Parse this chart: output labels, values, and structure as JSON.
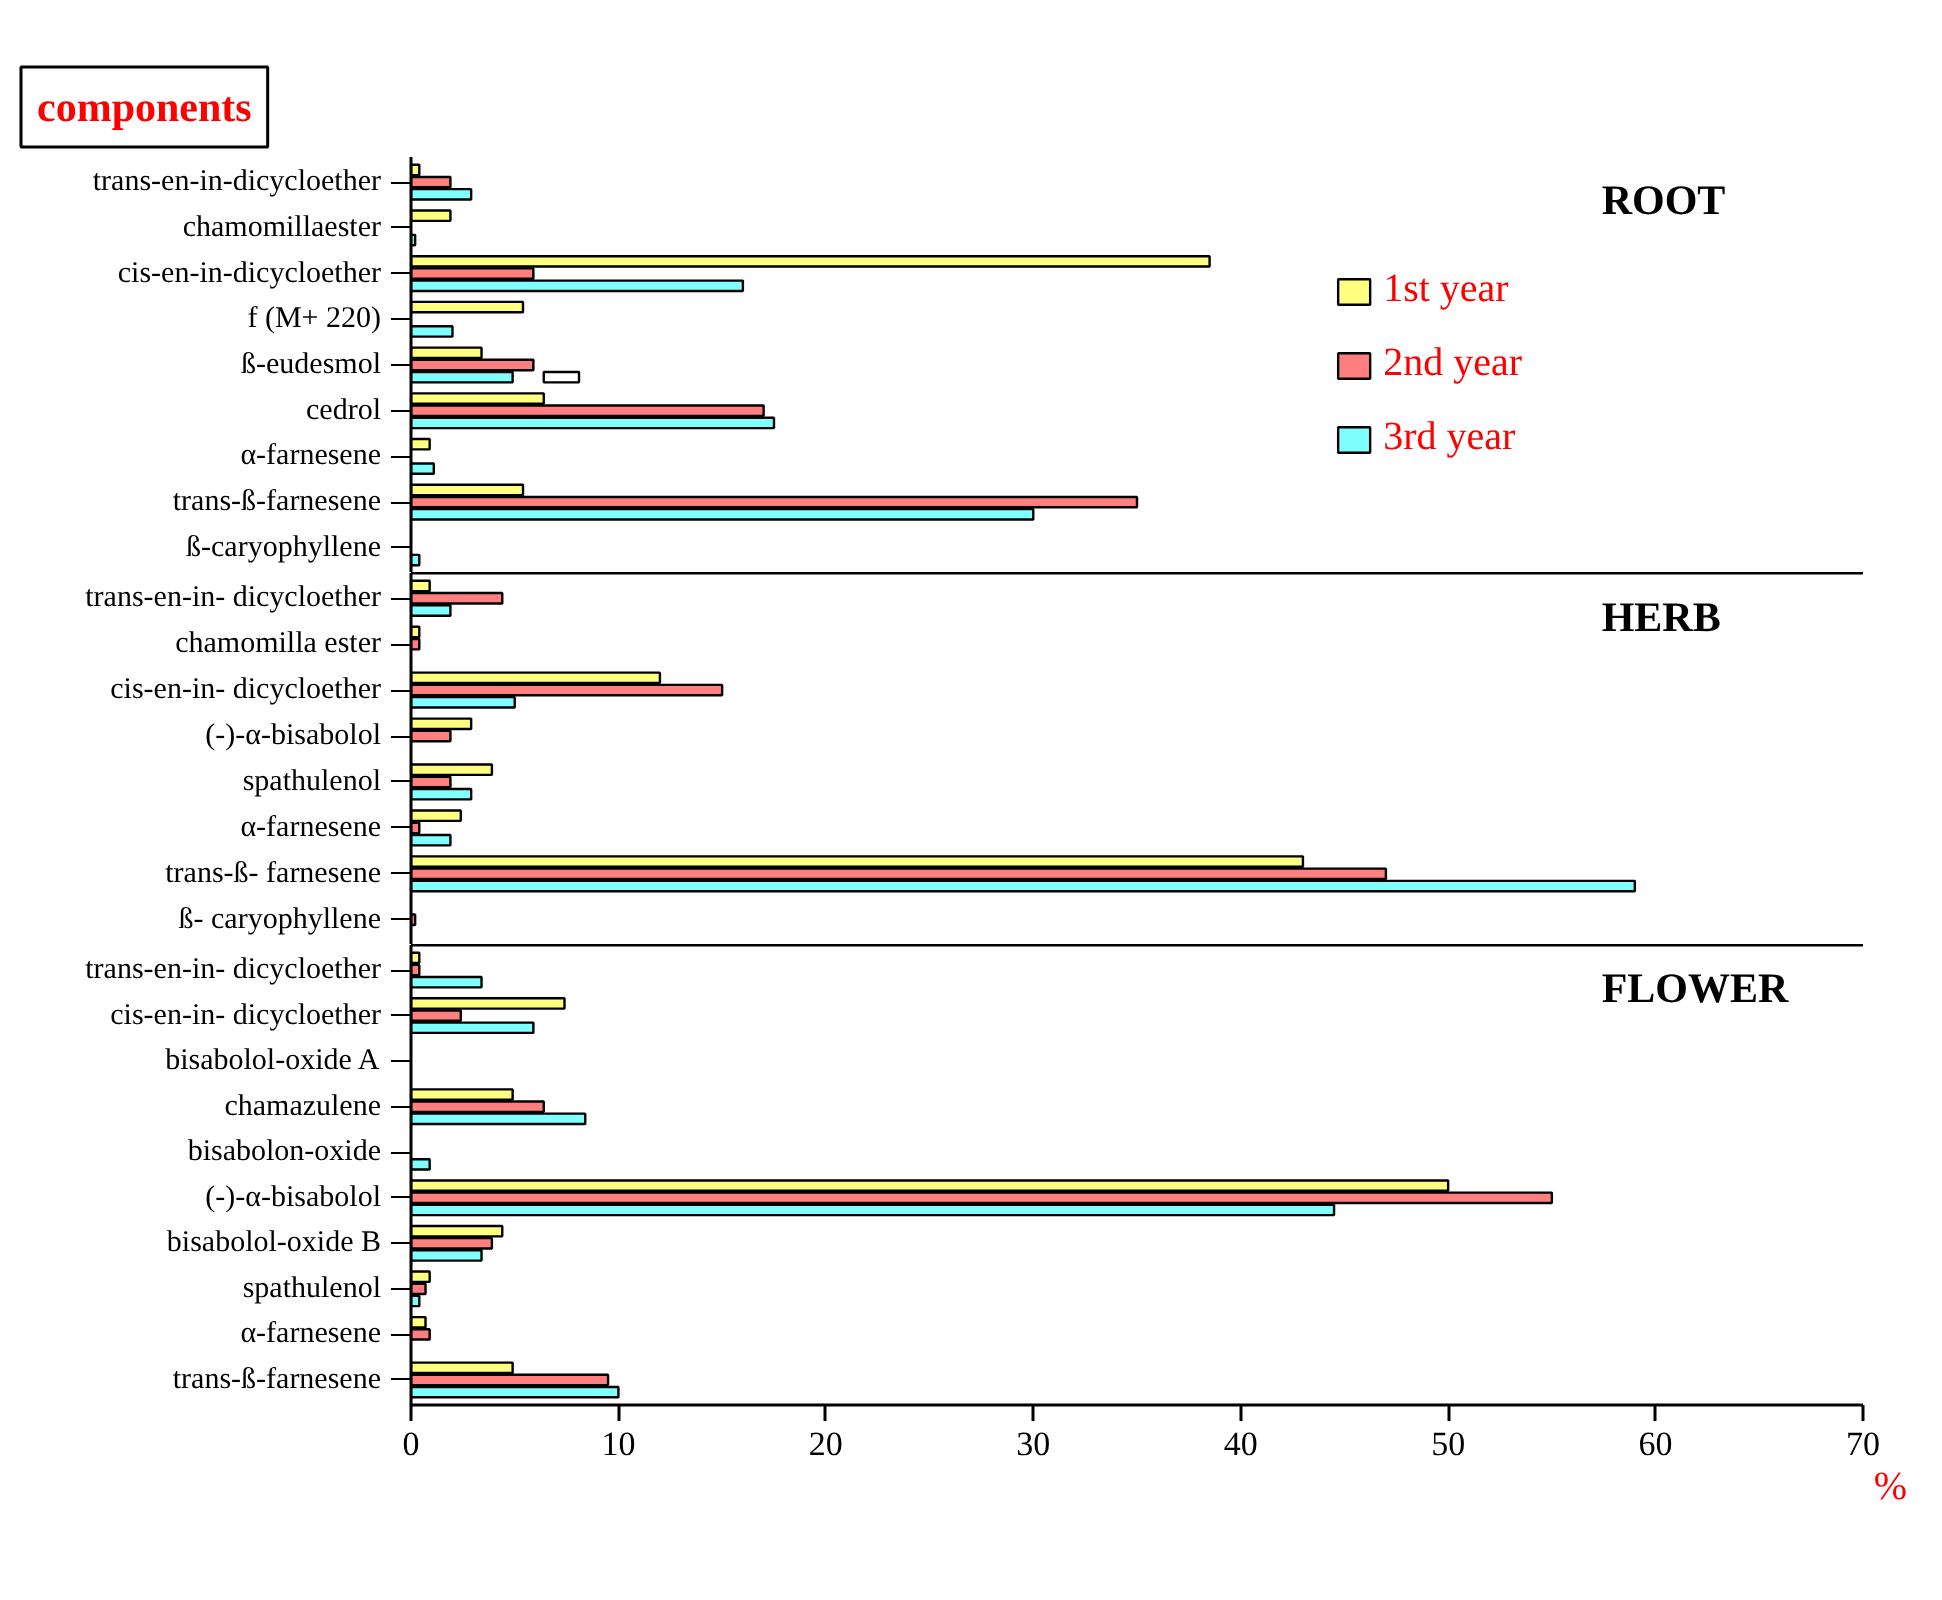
{
  "chart_data": [
    {
      "type": "bar",
      "orientation": "horizontal",
      "title": "components",
      "annotations": [
        "ROOT"
      ],
      "legend": "right",
      "tick_labels": "y",
      "xlim": [
        0,
        70
      ],
      "xticks": [
        0,
        10,
        20,
        30,
        40,
        50,
        60,
        70
      ],
      "categories": [
        "trans-en-in-dicycloether",
        "chamomillaester",
        "cis-en-in-dicycloether",
        "f (M+ 220)",
        "ß-eudesmol",
        "cedrol",
        "α-farnesene",
        "trans-ß-farnesene",
        "ß-caryophyllene"
      ],
      "series": [
        {
          "name": "1st year",
          "color": "#ffff80",
          "values": [
            0.4,
            1.9,
            38.5,
            5.4,
            3.4,
            6.4,
            0.9,
            5.4,
            null
          ]
        },
        {
          "name": "2nd year",
          "color": "#ff7f7f",
          "values": [
            1.9,
            null,
            5.9,
            null,
            5.9,
            17,
            null,
            35,
            null
          ]
        },
        {
          "name": "3rd year",
          "color": "#80ffff",
          "values": [
            2.9,
            0.2,
            16,
            2,
            4.9,
            17.5,
            1.1,
            30,
            0.4
          ]
        },
        {
          "color": "#ffffff",
          "values": [
            null,
            null,
            null,
            null,
            1.7,
            null,
            null,
            null,
            null
          ],
          "base": [
            null,
            null,
            null,
            null,
            6.4,
            null,
            null,
            null,
            null
          ]
        }
      ]
    },
    {
      "type": "bar",
      "orientation": "horizontal",
      "annotations": [
        "HERB"
      ],
      "tick_labels": "y",
      "xlim": [
        0,
        70
      ],
      "xticks": [
        0,
        10,
        20,
        30,
        40,
        50,
        60,
        70
      ],
      "categories": [
        "trans-en-in- dicycloether",
        "chamomilla ester",
        "cis-en-in- dicycloether",
        "(-)-α-bisabolol",
        "spathulenol",
        "α-farnesene",
        "trans-ß- farnesene",
        "ß- caryophyllene"
      ],
      "series": [
        {
          "color": "#ffff80",
          "values": [
            0.9,
            0.4,
            12,
            2.9,
            3.9,
            2.4,
            43,
            null
          ]
        },
        {
          "color": "#ff7f7f",
          "values": [
            4.4,
            0.4,
            15,
            1.9,
            1.9,
            0.4,
            47,
            0.2
          ]
        },
        {
          "color": "#80ffff",
          "values": [
            1.9,
            null,
            5,
            null,
            2.9,
            1.9,
            59,
            null
          ]
        }
      ]
    },
    {
      "type": "bar",
      "orientation": "horizontal",
      "annotations": [
        "FLOWER"
      ],
      "xlabel": "%",
      "xlim": [
        0,
        70
      ],
      "xticks": [
        0,
        10,
        20,
        30,
        40,
        50,
        60,
        70
      ],
      "categories": [
        "trans-en-in- dicycloether",
        "cis-en-in- dicycloether",
        "bisabolol-oxide A",
        "chamazulene",
        "bisabolon-oxide",
        "(-)-α-bisabolol",
        "bisabolol-oxide B",
        "spathulenol",
        "α-farnesene",
        "trans-ß-farnesene"
      ],
      "series": [
        {
          "color": "#ffff80",
          "values": [
            0.4,
            7.4,
            null,
            4.9,
            null,
            50,
            4.4,
            0.9,
            0.7,
            4.9
          ]
        },
        {
          "color": "#ff7f7f",
          "values": [
            0.4,
            2.4,
            null,
            6.4,
            null,
            55,
            3.9,
            0.7,
            0.9,
            9.5
          ]
        },
        {
          "color": "#80ffff",
          "values": [
            3.4,
            5.9,
            null,
            8.4,
            0.9,
            44.5,
            3.4,
            0.4,
            null,
            10
          ]
        }
      ]
    }
  ]
}
